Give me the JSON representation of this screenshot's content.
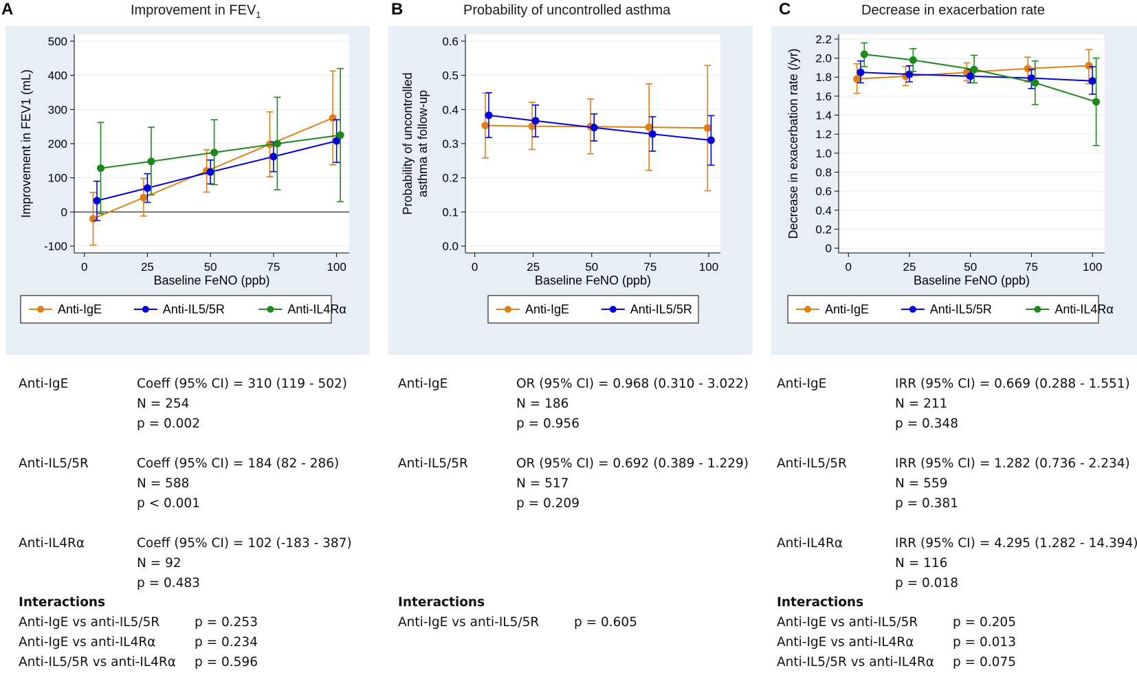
{
  "panels": [
    {
      "letter": "A",
      "title": "Improvement in FEV",
      "title_sub": "1",
      "chart_data": {
        "type": "line",
        "xlabel": "Baseline FeNO (ppb)",
        "ylabel": "Improvement in FEV1 (mL)",
        "x_ticks": [
          0,
          25,
          50,
          75,
          100
        ],
        "y_ticks": [
          -100,
          0,
          100,
          200,
          300,
          400,
          500
        ],
        "y_tick_labels": [
          "-100",
          "0",
          "100",
          "200",
          "300",
          "400",
          "500"
        ],
        "xlim": [
          -4,
          105
        ],
        "ylim": [
          -120,
          520
        ],
        "zero_line": true,
        "legend": [
          "Anti-IgE",
          "Anti-IL5/5R",
          "Anti-IL4Rα"
        ],
        "series": [
          {
            "name": "Anti-IgE",
            "color": "#e07f14",
            "x": [
              3.5,
              23.5,
              48.5,
              73.5,
              98.5
            ],
            "y": [
              -20,
              42,
              120,
              198,
              275
            ],
            "lo": [
              -97,
              -12,
              58,
              103,
              138
            ],
            "hi": [
              57,
              98,
              182,
              293,
              413
            ]
          },
          {
            "name": "Anti-IL5/5R",
            "color": "#0000e0",
            "x": [
              5,
              25,
              50,
              75,
              100
            ],
            "y": [
              33,
              70,
              117,
              162,
              208
            ],
            "lo": [
              -25,
              28,
              82,
              118,
              145
            ],
            "hi": [
              90,
              112,
              152,
              205,
              270
            ]
          },
          {
            "name": "Anti-IL4Rα",
            "color": "#1a8a1a",
            "x": [
              6.5,
              26.5,
              51.5,
              76.5,
              101.5
            ],
            "y": [
              128,
              148,
              174,
              200,
              225
            ],
            "lo": [
              -5,
              50,
              80,
              65,
              30
            ],
            "hi": [
              262,
              248,
              270,
              336,
              420
            ]
          }
        ]
      },
      "stats": [
        {
          "drug": "Anti-IgE",
          "lines": [
            "Coeff (95% CI) = 310 (119 - 502)",
            "N = 254",
            "p = 0.002"
          ]
        },
        {
          "drug": "Anti-IL5/5R",
          "lines": [
            "Coeff (95% CI) = 184 (82 - 286)",
            "N = 588",
            "p < 0.001"
          ]
        },
        {
          "drug": "Anti-IL4Rα",
          "lines": [
            "Coeff (95% CI) = 102 (-183 - 387)",
            "N = 92",
            "p = 0.483"
          ]
        }
      ],
      "interactions_label": "Interactions",
      "interactions": [
        {
          "label": "Anti-IgE vs anti-IL5/5R",
          "p": "p = 0.253"
        },
        {
          "label": "Anti-IgE vs anti-IL4Rα",
          "p": "p = 0.234"
        },
        {
          "label": "Anti-IL5/5R vs anti-IL4Rα",
          "p": "p = 0.596"
        }
      ]
    },
    {
      "letter": "B",
      "title": "Probability of uncontrolled asthma",
      "title_sub": "",
      "chart_data": {
        "type": "line",
        "xlabel": "Baseline FeNO (ppb)",
        "ylabel": "Probability of uncontrolled asthma at follow-up",
        "ylabel_lines": [
          "Probability of uncontrolled",
          "asthma at follow-up"
        ],
        "x_ticks": [
          0,
          25,
          50,
          75,
          100
        ],
        "y_ticks": [
          0,
          0.1,
          0.2,
          0.3,
          0.4,
          0.5,
          0.6
        ],
        "y_tick_labels": [
          "0.0",
          "0.1",
          "0.2",
          "0.3",
          "0.4",
          "0.5",
          "0.6"
        ],
        "xlim": [
          -4,
          105
        ],
        "ylim": [
          -0.02,
          0.62
        ],
        "zero_line": false,
        "legend": [
          "Anti-IgE",
          "Anti-IL5/5R"
        ],
        "series": [
          {
            "name": "Anti-IgE",
            "color": "#e07f14",
            "x": [
              4.5,
              24.5,
              49.5,
              74.5,
              99.5
            ],
            "y": [
              0.353,
              0.351,
              0.35,
              0.348,
              0.346
            ],
            "lo": [
              0.258,
              0.283,
              0.27,
              0.222,
              0.162
            ],
            "hi": [
              0.448,
              0.421,
              0.431,
              0.475,
              0.529
            ]
          },
          {
            "name": "Anti-IL5/5R",
            "color": "#0000e0",
            "x": [
              6,
              26,
              51,
              76,
              101
            ],
            "y": [
              0.383,
              0.367,
              0.347,
              0.328,
              0.31
            ],
            "lo": [
              0.318,
              0.32,
              0.308,
              0.278,
              0.237
            ],
            "hi": [
              0.449,
              0.413,
              0.387,
              0.379,
              0.382
            ]
          }
        ]
      },
      "stats": [
        {
          "drug": "Anti-IgE",
          "lines": [
            "OR (95% CI) = 0.968 (0.310 - 3.022)",
            "N = 186",
            "p = 0.956"
          ]
        },
        {
          "drug": "Anti-IL5/5R",
          "lines": [
            "OR (95% CI) = 0.692 (0.389 - 1.229)",
            "N = 517",
            "p = 0.209"
          ]
        }
      ],
      "interactions_label": "Interactions",
      "interactions": [
        {
          "label": "Anti-IgE vs anti-IL5/5R",
          "p": "p = 0.605"
        }
      ]
    },
    {
      "letter": "C",
      "title": "Decrease in exacerbation rate",
      "title_sub": "",
      "chart_data": {
        "type": "line",
        "xlabel": "Baseline FeNO (ppb)",
        "ylabel": "Decrease in exacerbation rate (/yr)",
        "x_ticks": [
          0,
          25,
          50,
          75,
          100
        ],
        "y_ticks": [
          0,
          0.2,
          0.4,
          0.6,
          0.8,
          1.0,
          1.2,
          1.4,
          1.6,
          1.8,
          2.0,
          2.2
        ],
        "y_tick_labels": [
          "0",
          "0.2",
          "0.4",
          "0.6",
          "0.8",
          "1.0",
          "1.2",
          "1.4",
          "1.6",
          "1.8",
          "2.0",
          "2.2"
        ],
        "xlim": [
          -4,
          105
        ],
        "ylim": [
          -0.05,
          2.25
        ],
        "zero_line": false,
        "legend": [
          "Anti-IgE",
          "Anti-IL5/5R",
          "Anti-IL4Rα"
        ],
        "series": [
          {
            "name": "Anti-IgE",
            "color": "#e07f14",
            "x": [
              3.5,
              23.5,
              48.5,
              73.5,
              98.5
            ],
            "y": [
              1.78,
              1.81,
              1.85,
              1.89,
              1.92
            ],
            "lo": [
              1.63,
              1.71,
              1.76,
              1.75,
              1.73
            ],
            "hi": [
              1.94,
              1.91,
              1.95,
              2.01,
              2.09
            ]
          },
          {
            "name": "Anti-IL5/5R",
            "color": "#0000e0",
            "x": [
              5,
              25,
              50,
              75,
              100
            ],
            "y": [
              1.85,
              1.83,
              1.81,
              1.79,
              1.76
            ],
            "lo": [
              1.74,
              1.75,
              1.74,
              1.68,
              1.62
            ],
            "hi": [
              1.97,
              1.92,
              1.88,
              1.88,
              1.91
            ]
          },
          {
            "name": "Anti-IL4Rα",
            "color": "#1a8a1a",
            "x": [
              6.5,
              26.5,
              51.5,
              76.5,
              101.5
            ],
            "y": [
              2.04,
              1.98,
              1.88,
              1.74,
              1.54
            ],
            "lo": [
              1.91,
              1.86,
              1.74,
              1.51,
              1.08
            ],
            "hi": [
              2.16,
              2.1,
              2.03,
              1.97,
              2.0
            ]
          }
        ]
      },
      "stats": [
        {
          "drug": "Anti-IgE",
          "lines": [
            "IRR (95% CI) = 0.669 (0.288 - 1.551)",
            "N = 211",
            "p = 0.348"
          ]
        },
        {
          "drug": "Anti-IL5/5R",
          "lines": [
            "IRR (95% CI) = 1.282 (0.736 - 2.234)",
            "N = 559",
            "p = 0.381"
          ]
        },
        {
          "drug": "Anti-IL4Rα",
          "lines": [
            "IRR (95% CI) = 4.295 (1.282 - 14.394)",
            "N = 116",
            "p = 0.018"
          ]
        }
      ],
      "interactions_label": "Interactions",
      "interactions": [
        {
          "label": "Anti-IgE vs anti-IL5/5R",
          "p": "p = 0.205"
        },
        {
          "label": "Anti-IgE vs anti-IL4Rα",
          "p": "p = 0.013"
        },
        {
          "label": "Anti-IL5/5R vs anti-IL4Rα",
          "p": "p = 0.075"
        }
      ]
    }
  ]
}
